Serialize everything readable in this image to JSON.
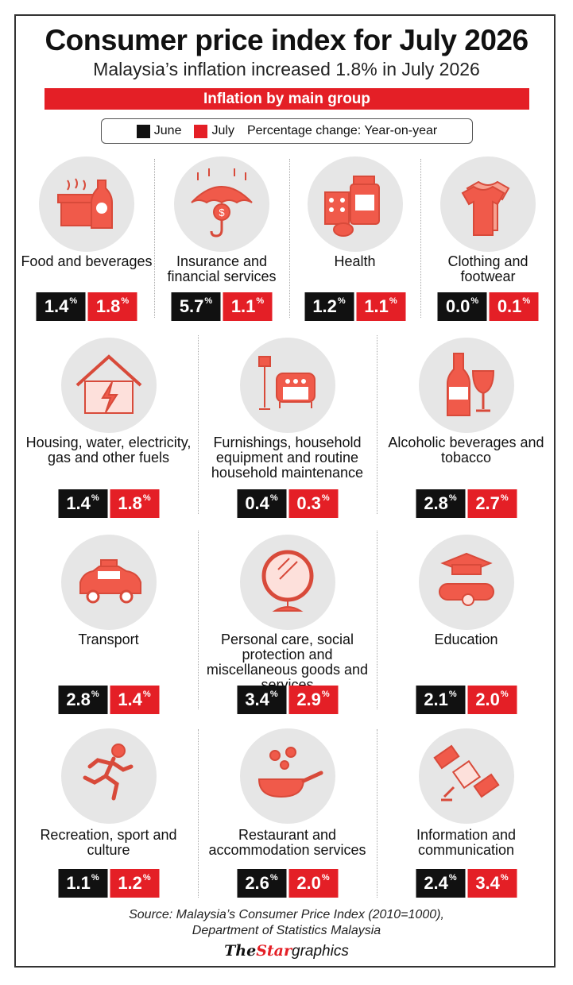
{
  "title": "Consumer price index for July 2026",
  "subtitle": "Malaysia’s inflation increased 1.8% in July 2026",
  "group_bar": "Inflation by main group",
  "legend": {
    "june_label": "June",
    "july_label": "July",
    "note": "Percentage change: Year-on-year",
    "june_color": "#111111",
    "july_color": "#e41f26"
  },
  "chart_data": {
    "type": "table",
    "columns": [
      "June",
      "July"
    ],
    "unit": "%",
    "rows": [
      {
        "group": "Food and beverages",
        "icon": "food-beverage-icon",
        "june": "1.4",
        "july": "1.8"
      },
      {
        "group": "Insurance and financial services",
        "icon": "umbrella-coin-icon",
        "june": "5.7",
        "july": "1.1"
      },
      {
        "group": "Health",
        "icon": "medicine-icon",
        "june": "1.2",
        "july": "1.1"
      },
      {
        "group": "Clothing and footwear",
        "icon": "tshirt-icon",
        "june": "0.0",
        "july": "0.1"
      },
      {
        "group": "Housing, water, electricity, gas and other fuels",
        "icon": "house-lightning-icon",
        "june": "1.4",
        "july": "1.8"
      },
      {
        "group": "Furnishings, household equipment and routine household maintenance",
        "icon": "armchair-lamp-icon",
        "june": "0.4",
        "july": "0.3"
      },
      {
        "group": "Alcoholic beverages and tobacco",
        "icon": "wine-bottle-glass-icon",
        "june": "2.8",
        "july": "2.7"
      },
      {
        "group": "Transport",
        "icon": "taxi-icon",
        "june": "2.8",
        "july": "1.4"
      },
      {
        "group": "Personal care, social protection and miscellaneous goods and services",
        "icon": "mirror-icon",
        "june": "3.4",
        "july": "2.9"
      },
      {
        "group": "Education",
        "icon": "graduation-cap-diploma-icon",
        "june": "2.1",
        "july": "2.0"
      },
      {
        "group": "Recreation, sport and culture",
        "icon": "runner-icon",
        "june": "1.1",
        "july": "1.2"
      },
      {
        "group": "Restaurant and accommodation services",
        "icon": "frying-pan-icon",
        "june": "2.6",
        "july": "2.0"
      },
      {
        "group": "Information and communication",
        "icon": "satellite-icon",
        "june": "2.4",
        "july": "3.4"
      }
    ]
  },
  "source": {
    "line1": "Source: Malaysia’s Consumer Price Index (2010=1000),",
    "line2": "Department of Statistics Malaysia"
  },
  "logo": {
    "the": "The",
    "star": "Star",
    "graphics": "graphics"
  }
}
